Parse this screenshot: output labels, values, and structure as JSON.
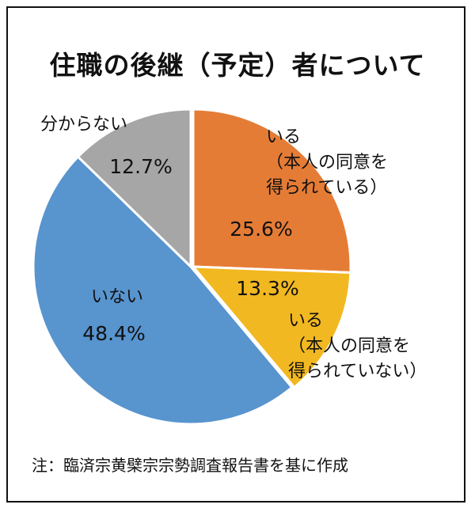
{
  "title": "住職の後継（予定）者について",
  "note": "注：臨済宗黄檗宗宗勢調査報告書を基に作成",
  "chart_data": {
    "type": "pie",
    "start_angle_deg": 0,
    "direction": "clockwise",
    "slices": [
      {
        "label_lines": [
          "いる",
          "（本人の同意を",
          "得られている）"
        ],
        "value": 25.6,
        "value_label": "25.6%",
        "color": "#E57C36",
        "offset": [
          0,
          0
        ]
      },
      {
        "label_lines": [
          "いる",
          "（本人の同意を",
          "得られていない）"
        ],
        "value": 13.3,
        "value_label": "13.3%",
        "color": "#F2B821",
        "offset": [
          0,
          0
        ]
      },
      {
        "label_lines": [
          "いない"
        ],
        "value": 48.4,
        "value_label": "48.4%",
        "color": "#5894CE",
        "offset": [
          -3,
          0
        ]
      },
      {
        "label_lines": [
          "分からない"
        ],
        "value": 12.7,
        "value_label": "12.7%",
        "color": "#A6A6A6",
        "offset": [
          -3,
          0
        ]
      }
    ]
  }
}
